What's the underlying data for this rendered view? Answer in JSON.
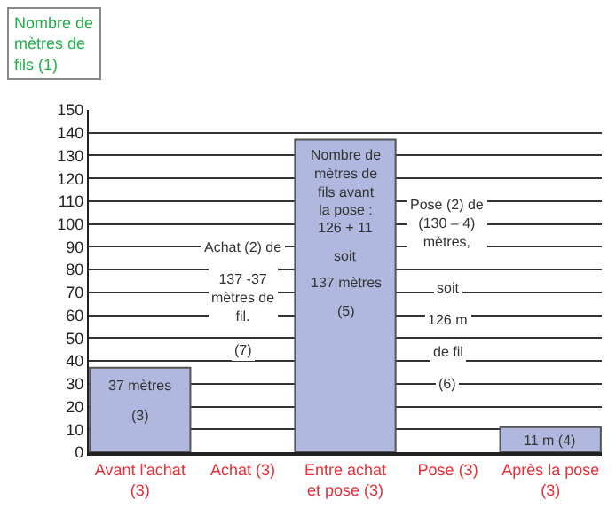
{
  "chart_data": {
    "type": "bar",
    "ylabel": "Nombre de mètres de fils (1)",
    "categories": [
      "Avant l'achat (3)",
      "Achat (3)",
      "Entre achat et pose (3)",
      "Pose (3)",
      "Après la pose (3)"
    ],
    "values": [
      37,
      null,
      137,
      null,
      11
    ],
    "color": "#b1b8df",
    "ylim": [
      0,
      150
    ],
    "yticks": [
      0,
      10,
      20,
      30,
      40,
      50,
      60,
      70,
      80,
      90,
      100,
      110,
      120,
      130,
      140,
      150
    ],
    "grid": "y",
    "annotations": [
      "37 mètres",
      "(3)",
      "Achat (2) de",
      "137 -37 mètres de fil.",
      "(7)",
      "Nombre de mètres de fils avant la pose :",
      "126 + 11",
      "soit",
      "137 mètres",
      "(5)",
      "Pose (2) de (130 – 4) mètres,",
      "soit",
      "126 m",
      "de fil",
      "(6)",
      "11 m (4)"
    ]
  }
}
